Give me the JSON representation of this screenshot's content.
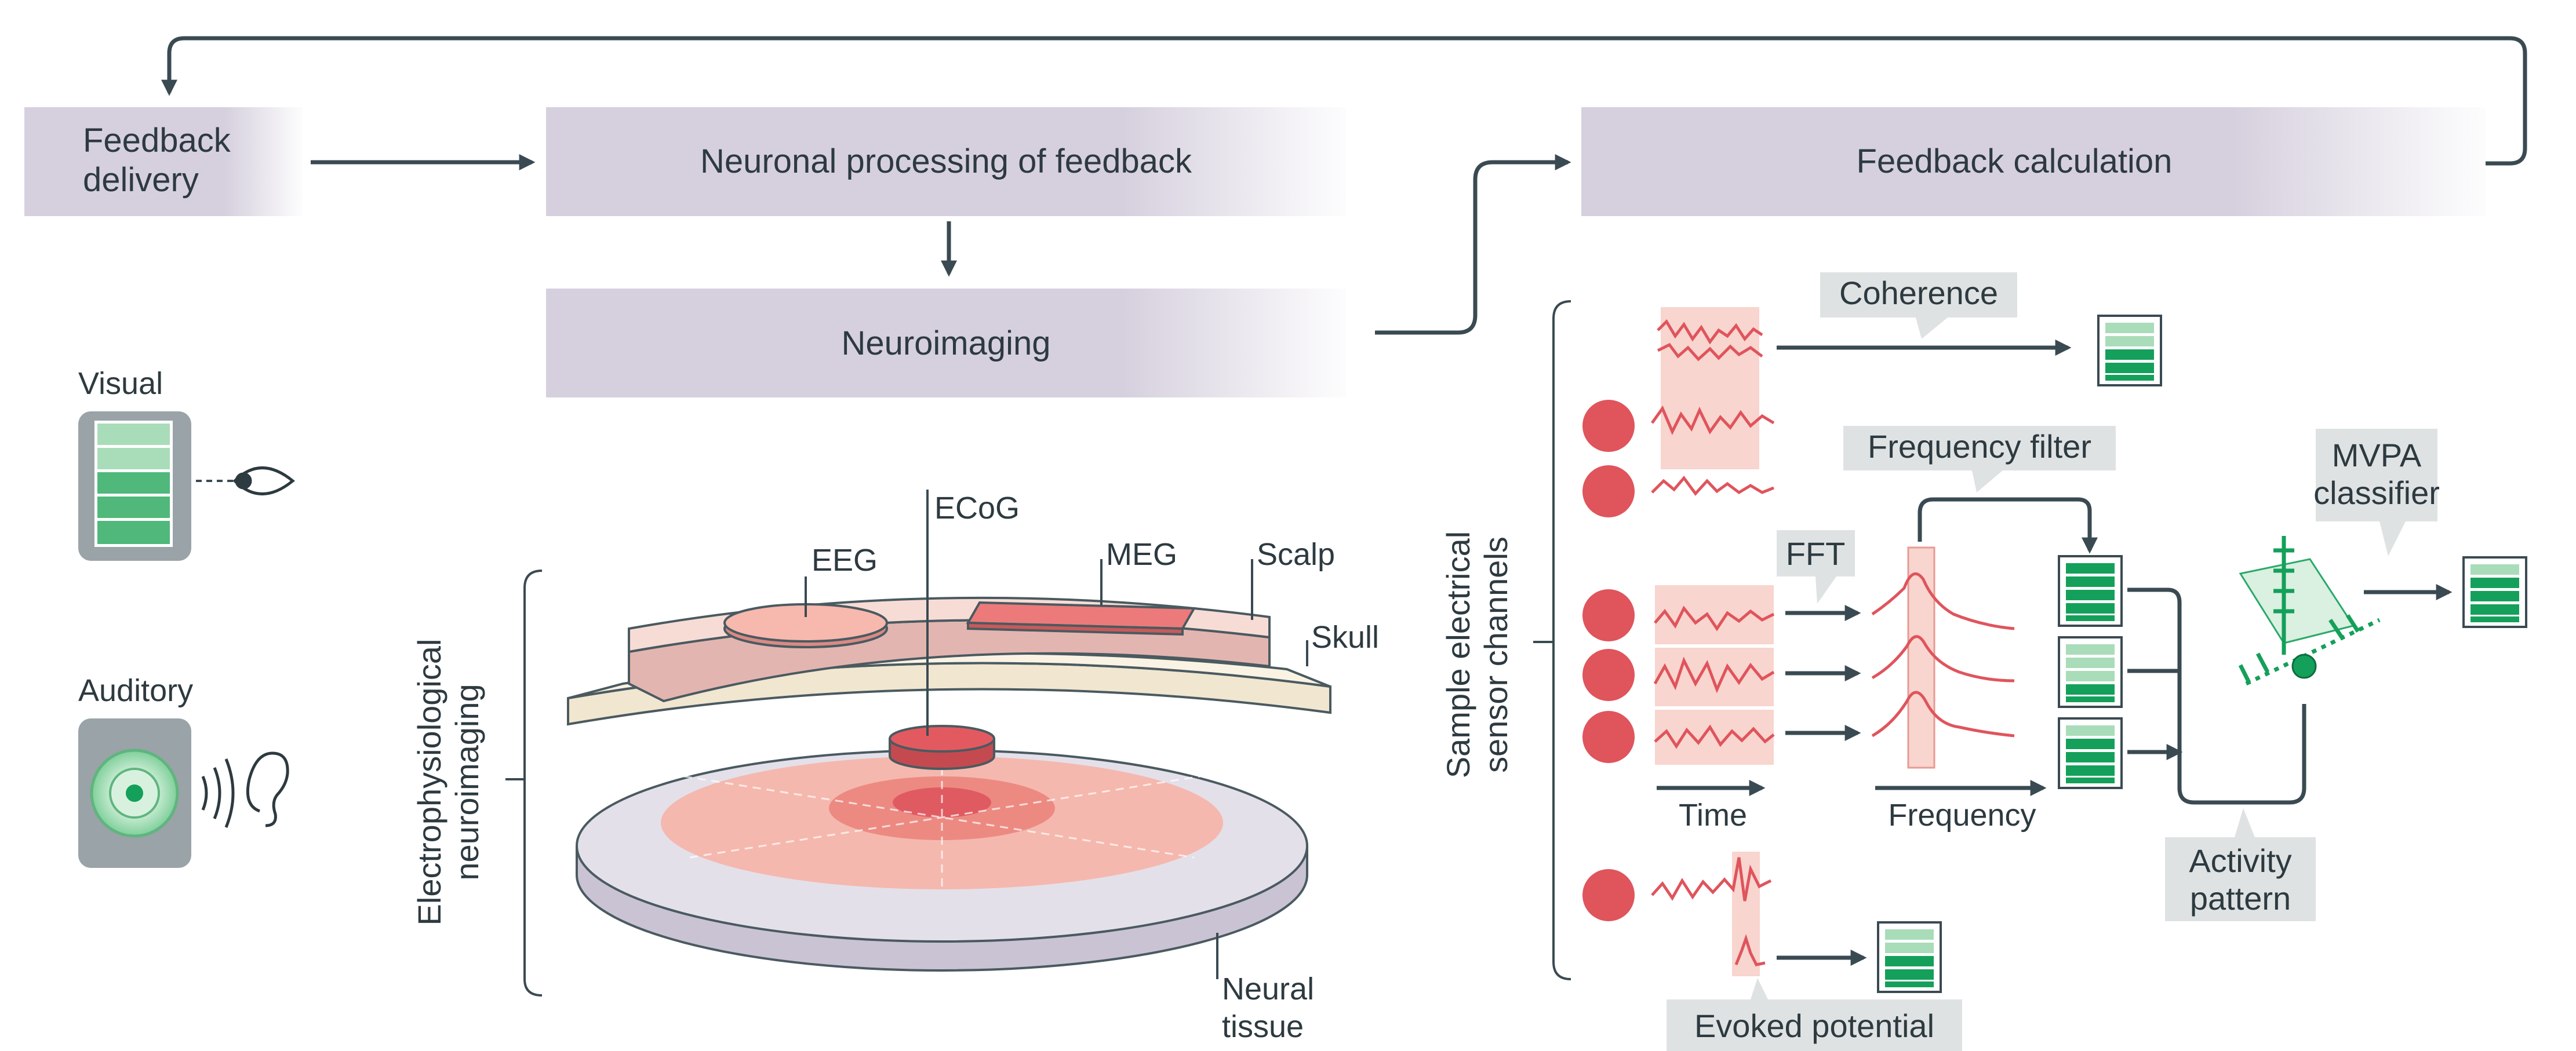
{
  "flow": {
    "feedback_delivery_line1": "Feedback",
    "feedback_delivery_line2": "delivery",
    "neuronal_processing": "Neuronal processing of feedback",
    "neuroimaging": "Neuroimaging",
    "feedback_calculation": "Feedback calculation"
  },
  "modalities": {
    "visual": "Visual",
    "auditory": "Auditory"
  },
  "neuroimaging_panel": {
    "side_label_line1": "Electrophysiological",
    "side_label_line2": "neuroimaging",
    "eeg": "EEG",
    "ecog": "ECoG",
    "meg": "MEG",
    "scalp": "Scalp",
    "skull": "Skull",
    "neural_line1": "Neural",
    "neural_line2": "tissue"
  },
  "analysis_panel": {
    "side_label_line1": "Sample electrical",
    "side_label_line2": "sensor channels",
    "coherence": "Coherence",
    "frequency_filter": "Frequency filter",
    "fft": "FFT",
    "mvpa_line1": "MVPA",
    "mvpa_line2": "classifier",
    "time": "Time",
    "frequency": "Frequency",
    "activity_line1": "Activity",
    "activity_line2": "pattern",
    "evoked_potential": "Evoked potential"
  },
  "colors": {
    "box_fill": "#d6d0de",
    "callout_fill": "#dfe2e3",
    "arrow": "#3a4a52",
    "signal": "#e0545c",
    "signal_bg": "#f8d5cf",
    "meter_green": "#14a05a",
    "meter_light": "#a9dcb9",
    "device_gray": "#9aa3a8"
  }
}
